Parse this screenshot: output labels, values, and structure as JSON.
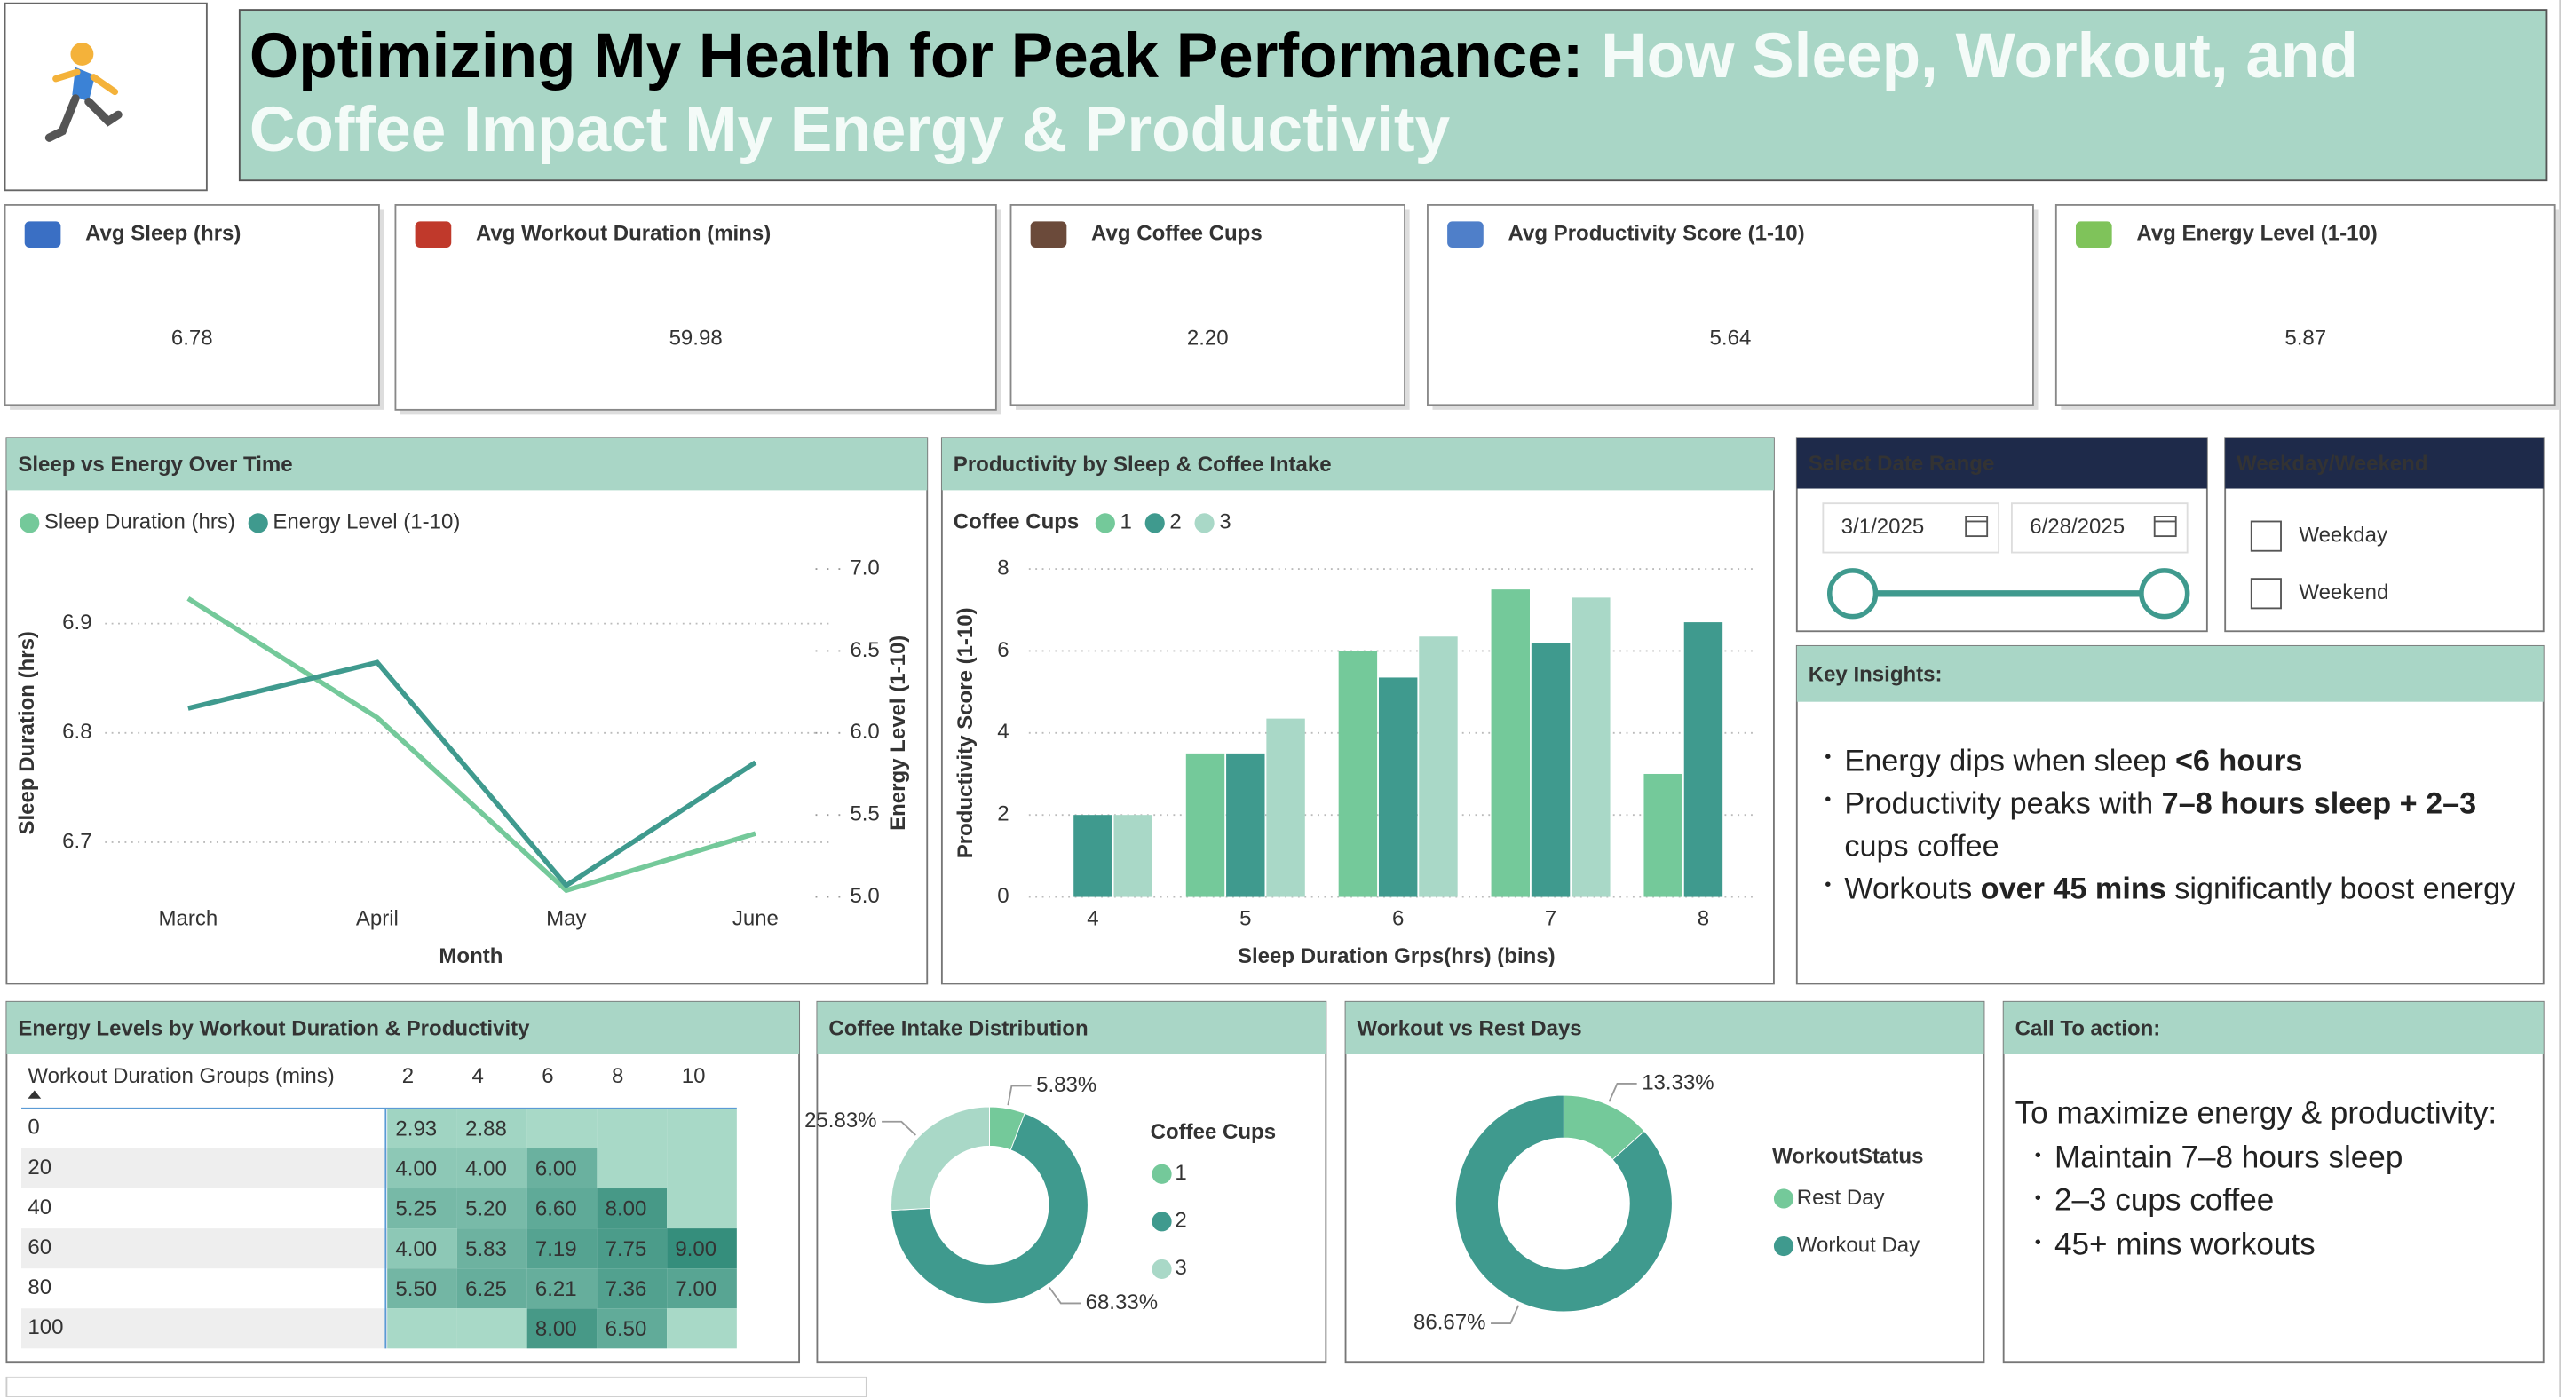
{
  "header": {
    "title": "Optimizing My Health for Peak Performance:",
    "subtitle": "How Sleep, Workout, and Coffee Impact My Energy & Productivity"
  },
  "kpis": [
    {
      "label": "Avg Sleep (hrs)",
      "value": "6.78",
      "color": "#e0392b"
    },
    {
      "label": "Avg Workout Duration (mins)",
      "value": "59.98",
      "color": "#6cc593"
    },
    {
      "label": "Avg Coffee Cups",
      "value": "2.20",
      "color": "#6cc593"
    },
    {
      "label": "Avg Productivity Score (1-10)",
      "value": "5.64",
      "color": "#e0392b"
    },
    {
      "label": "Avg Energy Level (1-10)",
      "value": "5.87",
      "color": "#e0392b"
    }
  ],
  "chart_data": [
    {
      "type": "line",
      "title": "Sleep vs Energy Over Time",
      "categories": [
        "March",
        "April",
        "May",
        "June"
      ],
      "series": [
        {
          "name": "Sleep Duration (hrs)",
          "color": "#74c99a",
          "values": [
            6.923,
            6.814,
            6.656,
            6.708
          ]
        },
        {
          "name": "Energy Level (1-10)",
          "color": "#3f9a8e",
          "axis": "y2",
          "values": [
            6.15,
            6.43,
            5.07,
            5.82
          ]
        }
      ],
      "ylim": [
        6.65,
        6.95
      ],
      "yticks": [
        6.7,
        6.8,
        6.9
      ],
      "y2lim": [
        5.0,
        7.0
      ],
      "y2ticks": [
        {
          "value": 5.0,
          "label": "5.0"
        },
        {
          "value": 5.5,
          "label": "5.5"
        },
        {
          "value": 6.0,
          "label": "6.0"
        },
        {
          "value": 6.5,
          "label": "6.5"
        },
        {
          "value": 7.0,
          "label": "7.0"
        }
      ],
      "y_label": "Sleep Duration (hrs)",
      "y2_label": "Energy Level (1-10)",
      "x_label": "Month",
      "grid": true
    },
    {
      "type": "bar",
      "title": "Productivity by Sleep & Coffee Intake",
      "legend_title": "Coffee Cups",
      "categories": [
        "4",
        "5",
        "6",
        "7",
        "8"
      ],
      "series": [
        {
          "name": "1",
          "color": "#74c99a",
          "values": [
            null,
            3.5,
            6.0,
            7.5,
            3.0
          ]
        },
        {
          "name": "2",
          "color": "#3f9a8e",
          "values": [
            2.0,
            3.5,
            5.35,
            6.2,
            6.7
          ]
        },
        {
          "name": "3",
          "color": "#a9d8c7",
          "values": [
            2.0,
            4.35,
            6.35,
            7.3,
            null
          ]
        }
      ],
      "ylim": [
        0,
        8
      ],
      "yticks": [
        0,
        2,
        4,
        6,
        8
      ],
      "y_label": "Productivity Score (1-10)",
      "x_label": "Sleep Duration Grps(hrs) (bins)",
      "grid": true
    },
    {
      "type": "pie",
      "title": "Coffee Intake Distribution",
      "legend_title": "Coffee Cups",
      "categories": [
        "1",
        "2",
        "3"
      ],
      "values": [
        5.83,
        68.33,
        25.83
      ],
      "value_labels": [
        "5.83%",
        "68.33%",
        "25.83%"
      ],
      "colors": [
        "#74c99a",
        "#3f9a8e",
        "#a9d8c7"
      ]
    },
    {
      "type": "pie",
      "title": "Workout vs Rest Days",
      "legend_title": "WorkoutStatus",
      "categories": [
        "Rest Day",
        "Workout Day"
      ],
      "values": [
        13.33,
        86.67
      ],
      "value_labels": [
        "13.33%",
        "86.67%"
      ],
      "colors": [
        "#74c99a",
        "#3f9a8e"
      ]
    }
  ],
  "matrix": {
    "title": "Energy Levels by Workout Duration & Productivity",
    "column_header": "Workout Duration Groups (mins)",
    "columns": [
      "2",
      "4",
      "6",
      "8",
      "10"
    ],
    "rows": [
      {
        "label": "0",
        "cells": [
          "2.93",
          "2.88",
          null,
          null,
          null
        ]
      },
      {
        "label": "20",
        "cells": [
          "4.00",
          "4.00",
          "6.00",
          null,
          null
        ]
      },
      {
        "label": "40",
        "cells": [
          "5.25",
          "5.20",
          "6.60",
          "8.00",
          null
        ]
      },
      {
        "label": "60",
        "cells": [
          "4.00",
          "5.83",
          "7.19",
          "7.75",
          "9.00"
        ]
      },
      {
        "label": "80",
        "cells": [
          "5.50",
          "6.25",
          "6.21",
          "7.36",
          "7.00"
        ]
      },
      {
        "label": "100",
        "cells": [
          null,
          null,
          "8.00",
          "6.50",
          null
        ]
      }
    ]
  },
  "date_slicer": {
    "title": "Select Date Range",
    "start": "3/1/2025",
    "end": "6/28/2025"
  },
  "day_slicer": {
    "title": "Weekday/Weekend",
    "options": [
      "Weekday",
      "Weekend"
    ]
  },
  "insights": {
    "title": "Key Insights:",
    "bullets": [
      [
        {
          "text": "Energy dips when sleep "
        },
        {
          "text": "<6 hours",
          "bold": true
        }
      ],
      [
        {
          "text": "Productivity peaks with "
        },
        {
          "text": "7–8 hours sleep + 2–3",
          "bold": true
        },
        {
          "text": " cups coffee"
        }
      ],
      [
        {
          "text": "Workouts "
        },
        {
          "text": "over 45 mins",
          "bold": true
        },
        {
          "text": " significantly boost energy"
        }
      ]
    ]
  },
  "call_to_action": {
    "title": "Call To action:",
    "intro": "To maximize energy & productivity:",
    "bullets": [
      "Maintain 7–8 hours sleep",
      "2–3 cups coffee",
      "45+ mins workouts"
    ]
  }
}
